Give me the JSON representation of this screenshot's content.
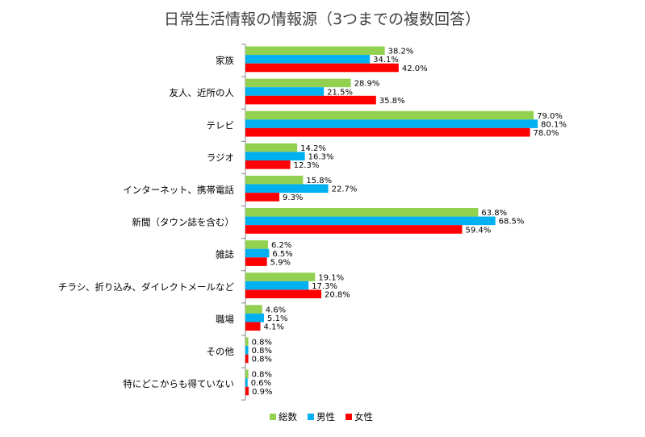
{
  "chart_data": {
    "type": "bar",
    "orientation": "horizontal",
    "title": "日常生活情報の情報源（3つまでの複数回答）",
    "categories": [
      "家族",
      "友人、近所の人",
      "テレビ",
      "ラジオ",
      "インターネット、携帯電話",
      "新聞（タウン誌を含む）",
      "雑誌",
      "チラシ、折り込み、ダイレクトメールなど",
      "職場",
      "その他",
      "特にどこからも得ていない"
    ],
    "series": [
      {
        "name": "総数",
        "color": "#92D050",
        "values": [
          38.2,
          28.9,
          79.0,
          14.2,
          15.8,
          63.8,
          6.2,
          19.1,
          4.6,
          0.8,
          0.8
        ],
        "labels": [
          "38.2%",
          "28.9%",
          "79.0%",
          "14.2%",
          "15.8%",
          "63.8%",
          "6.2%",
          "19.1%",
          "4.6%",
          "0.8%",
          "0.8%"
        ]
      },
      {
        "name": "男性",
        "color": "#00B0F0",
        "values": [
          34.1,
          21.5,
          80.1,
          16.3,
          22.7,
          68.5,
          6.5,
          17.3,
          5.1,
          0.8,
          0.6
        ],
        "labels": [
          "34.1%",
          "21.5%",
          "80.1%",
          "16.3%",
          "22.7%",
          "68.5%",
          "6.5%",
          "17.3%",
          "5.1%",
          "0.8%",
          "0.6%"
        ]
      },
      {
        "name": "女性",
        "color": "#FF0000",
        "values": [
          42.0,
          35.8,
          78.0,
          12.3,
          9.3,
          59.4,
          5.9,
          20.8,
          4.1,
          0.8,
          0.9
        ],
        "labels": [
          "42.0%",
          "35.8%",
          "78.0%",
          "12.3%",
          "9.3%",
          "59.4%",
          "5.9%",
          "20.8%",
          "4.1%",
          "0.8%",
          "0.9%"
        ]
      }
    ],
    "xlim": [
      0,
      100
    ],
    "grid": false,
    "legend": "bottom"
  }
}
